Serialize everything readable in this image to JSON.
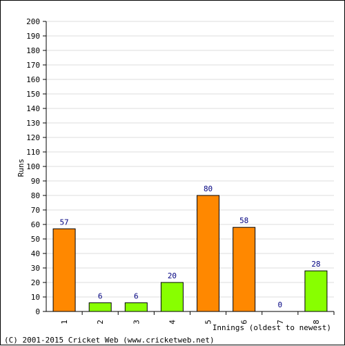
{
  "chart_data": {
    "type": "bar",
    "categories": [
      "1",
      "2",
      "3",
      "4",
      "5",
      "6",
      "7",
      "8"
    ],
    "values": [
      57,
      6,
      6,
      20,
      80,
      58,
      0,
      28
    ],
    "bar_colors": [
      "#ff8800",
      "#88ff00",
      "#88ff00",
      "#88ff00",
      "#ff8800",
      "#ff8800",
      "#88ff00",
      "#88ff00"
    ],
    "data_labels": [
      "57",
      "6",
      "6",
      "20",
      "80",
      "58",
      "0",
      "28"
    ],
    "ylabel": "Runs",
    "xlabel": "Innings (oldest to newest)",
    "ylim": [
      0,
      200
    ],
    "ytick_step": 10,
    "grid": true
  },
  "footer": {
    "copyright": "(C) 2001-2015 Cricket Web (www.cricketweb.net)"
  },
  "colors": {
    "grid": "#dddddd",
    "axis": "#000000",
    "label_value": "#000080",
    "bar_stroke": "#000000",
    "text": "#000000"
  }
}
